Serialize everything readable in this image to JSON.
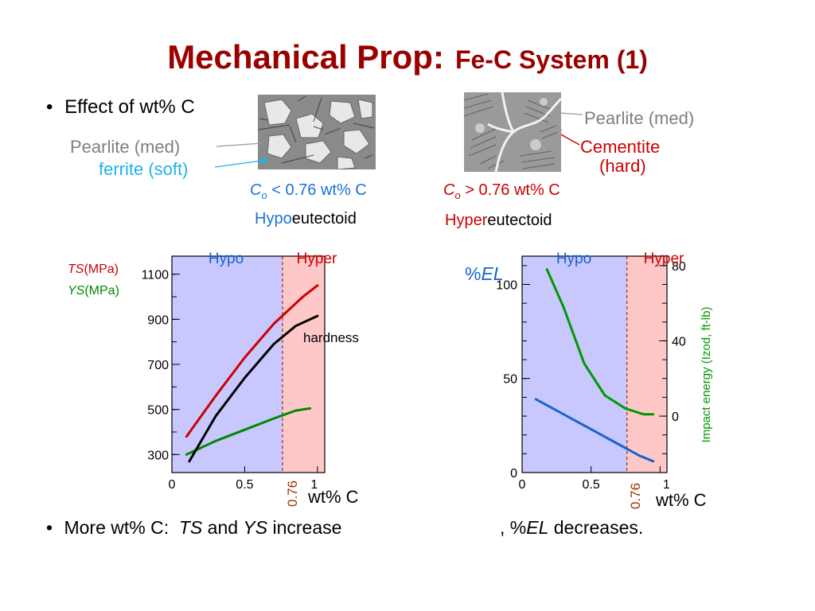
{
  "title": {
    "main": "Mechanical Prop:",
    "sub": "Fe-C System (1)"
  },
  "bullet1": {
    "symbol": "•",
    "text": "Effect of wt% C"
  },
  "left_micro": {
    "label_pearlite": "Pearlite (med)",
    "label_ferrite": "ferrite (soft)",
    "composition": {
      "C": "C",
      "o": "o",
      "rest": " < 0.76 wt% C"
    },
    "type_prefix": "Hypo",
    "type_suffix": "eutectoid"
  },
  "right_micro": {
    "label_pearlite": "Pearlite (med)",
    "label_cementite_1": "Cementite",
    "label_cementite_2": "(hard)",
    "composition": {
      "C": "C",
      "o": "o",
      "rest": " > 0.76 wt% C"
    },
    "type_prefix": "Hyper",
    "type_suffix": "eutectoid"
  },
  "colors": {
    "hypo_region": "#c8c8ff",
    "hyper_region": "#ffc8c8",
    "ts": "#cc0000",
    "ys": "#008800",
    "hardness": "#000000",
    "el": "#1a63cc",
    "impact": "#009900",
    "eutectoid_marker": "#993300",
    "title": "#990000"
  },
  "chart_data": [
    {
      "type": "line",
      "region_labels": {
        "hypo": "Hypo",
        "hyper": "Hyper"
      },
      "eutectoid": {
        "x": 0.76,
        "label": "0.76"
      },
      "xlabel": "wt% C",
      "xlim": [
        0,
        1.05
      ],
      "xticks": [
        {
          "v": 0,
          "label": "0"
        },
        {
          "v": 0.5,
          "label": "0.5"
        },
        {
          "v": 1,
          "label": "1"
        }
      ],
      "ylabel": {
        "ts_italic": "TS",
        "ts_unit": "(MPa)",
        "ys_italic": "YS",
        "ys_unit": "(MPa)"
      },
      "ylim": [
        220,
        1180
      ],
      "yticks": [
        {
          "v": 300,
          "label": "300"
        },
        {
          "v": 500,
          "label": "500"
        },
        {
          "v": 700,
          "label": "700"
        },
        {
          "v": 900,
          "label": "900"
        },
        {
          "v": 1100,
          "label": "1100"
        }
      ],
      "annotation": "hardness",
      "series": [
        {
          "key": "ts",
          "x": [
            0.1,
            0.3,
            0.5,
            0.7,
            0.9,
            1.0
          ],
          "y": [
            380,
            560,
            730,
            880,
            1000,
            1050
          ]
        },
        {
          "key": "ys",
          "x": [
            0.1,
            0.3,
            0.5,
            0.7,
            0.85,
            0.95
          ],
          "y": [
            300,
            360,
            410,
            460,
            495,
            505
          ]
        },
        {
          "key": "hardness",
          "x": [
            0.12,
            0.3,
            0.5,
            0.7,
            0.85,
            1.0
          ],
          "y": [
            270,
            470,
            640,
            790,
            870,
            915
          ]
        }
      ]
    },
    {
      "type": "line",
      "region_labels": {
        "hypo": "Hypo",
        "hyper": "Hyper"
      },
      "eutectoid": {
        "x": 0.76,
        "label": "0.76"
      },
      "xlabel": "wt% C",
      "xlim": [
        0,
        1.05
      ],
      "xticks": [
        {
          "v": 0,
          "label": "0"
        },
        {
          "v": 0.5,
          "label": "0.5"
        },
        {
          "v": 1,
          "label": "1"
        }
      ],
      "ylabel_left": {
        "prefix": "%",
        "italic": "EL"
      },
      "ylim_left": [
        0,
        115
      ],
      "yticks_left": [
        {
          "v": 0,
          "label": "0"
        },
        {
          "v": 50,
          "label": "50"
        },
        {
          "v": 100,
          "label": "100"
        }
      ],
      "ylabel_right": "Impact energy (Izod, ft-lb)",
      "ylim_right": [
        -30,
        85
      ],
      "yticks_right": [
        {
          "v": 0,
          "label": "0"
        },
        {
          "v": 40,
          "label": "40"
        },
        {
          "v": 80,
          "label": "80"
        }
      ],
      "series": [
        {
          "key": "el",
          "axis": "left",
          "x": [
            0.1,
            0.3,
            0.5,
            0.7,
            0.85,
            0.95
          ],
          "y": [
            39,
            31,
            23,
            15,
            9,
            6
          ]
        },
        {
          "key": "impact",
          "axis": "right",
          "x": [
            0.18,
            0.3,
            0.45,
            0.6,
            0.75,
            0.88,
            0.95
          ],
          "y": [
            78,
            58,
            28,
            11,
            4,
            1,
            1
          ]
        }
      ]
    }
  ],
  "bullet2": {
    "symbol": "•",
    "prefix": "More wt% C:  ",
    "ts": "TS",
    "and": " and ",
    "ys": "YS",
    "increase": " increase",
    "comma": ", %",
    "el": "EL",
    "decreases": " decreases."
  }
}
